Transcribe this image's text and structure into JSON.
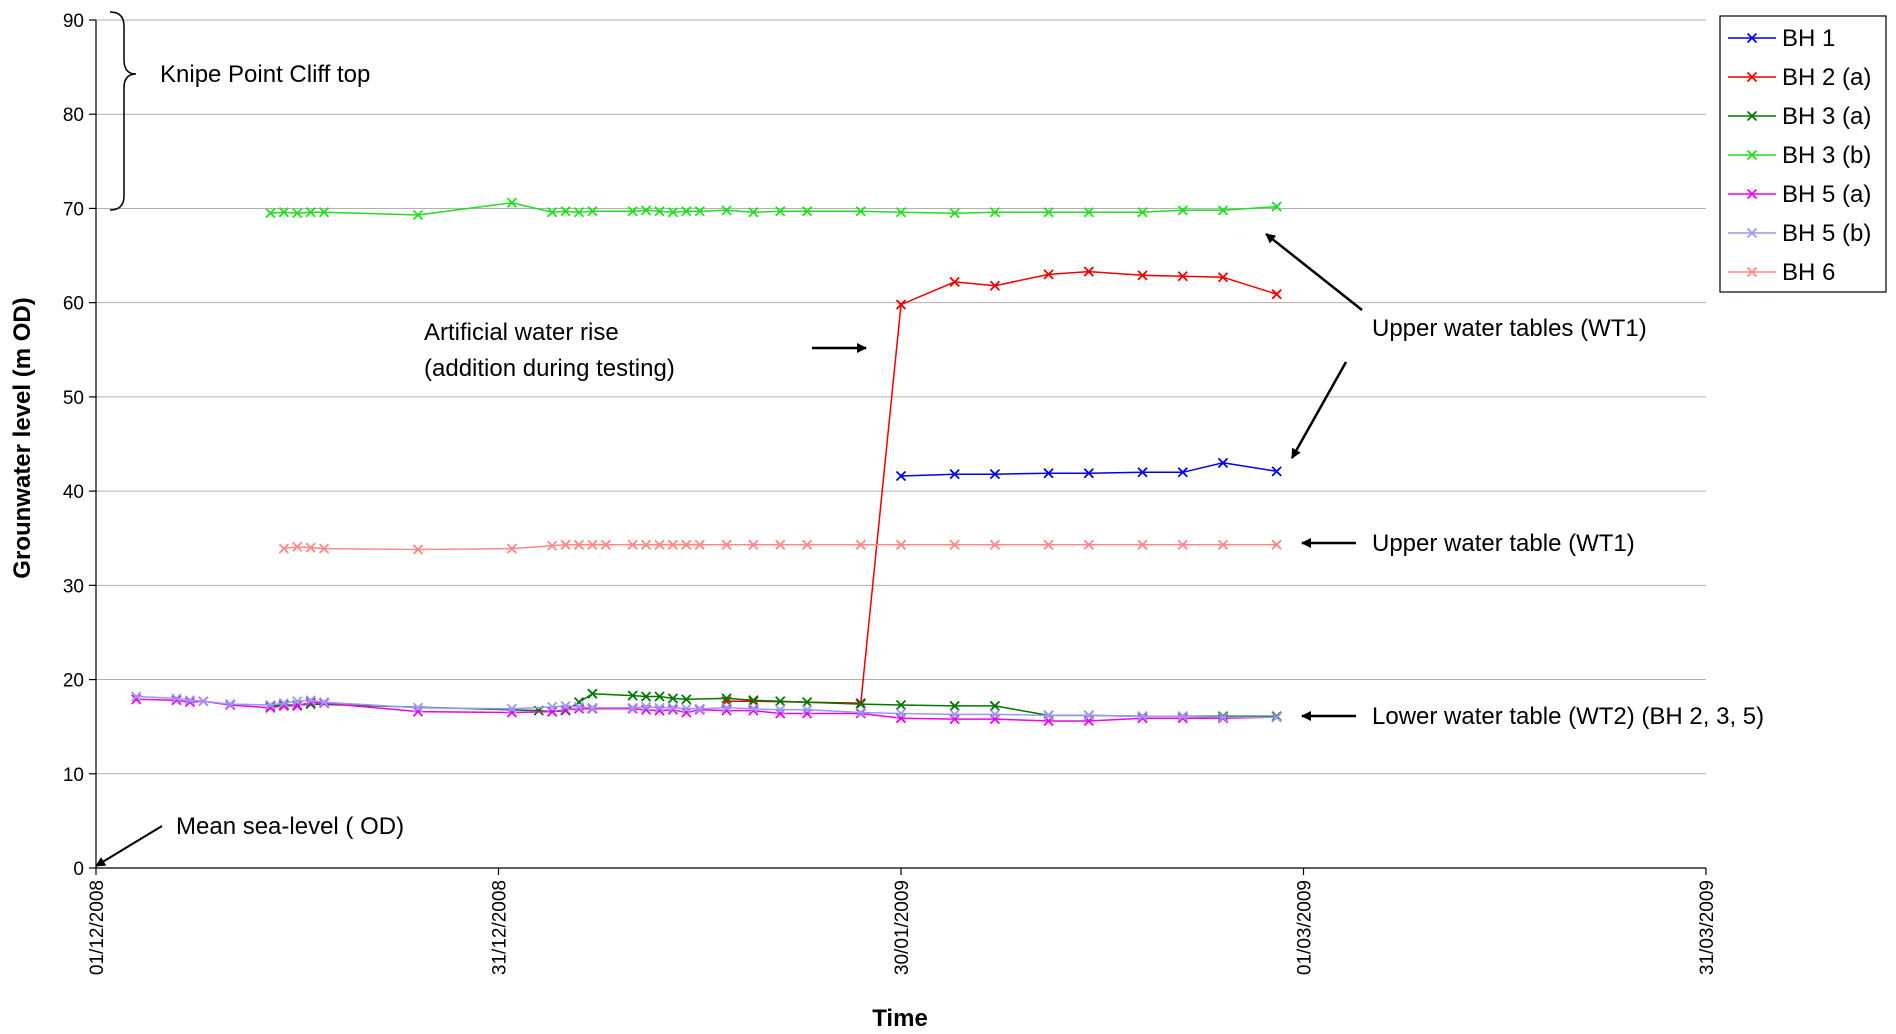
{
  "chart_data": {
    "type": "line",
    "title": "",
    "xlabel": "Time",
    "ylabel": "Grounwater level (m OD)",
    "ylim": [
      0,
      90
    ],
    "yticks": [
      0,
      10,
      20,
      30,
      40,
      50,
      60,
      70,
      80,
      90
    ],
    "xlim": [
      "2008-12-01",
      "2009-03-31"
    ],
    "xticks": [
      {
        "date": "2008-12-01",
        "label": "01/12/2008"
      },
      {
        "date": "2008-12-31",
        "label": "31/12/2008"
      },
      {
        "date": "2009-01-30",
        "label": "30/01/2009"
      },
      {
        "date": "2009-03-01",
        "label": "01/03/2009"
      },
      {
        "date": "2009-03-31",
        "label": "31/03/2009"
      }
    ],
    "grid": "horizontal",
    "legend_position": "top-right",
    "marker": "x",
    "series": [
      {
        "name": "BH 1",
        "color": "#0000ee",
        "x": [
          "2009-01-30",
          "2009-02-03",
          "2009-02-06",
          "2009-02-10",
          "2009-02-13",
          "2009-02-17",
          "2009-02-20",
          "2009-02-23",
          "2009-02-27"
        ],
        "y": [
          41.6,
          41.8,
          41.8,
          41.9,
          41.9,
          42.0,
          42.0,
          43.0,
          42.1
        ]
      },
      {
        "name": "BH 2 (a)",
        "color": "#ee0000",
        "x": [
          "2009-01-17",
          "2009-01-19",
          "2009-01-27",
          "2009-01-30",
          "2009-02-03",
          "2009-02-06",
          "2009-02-10",
          "2009-02-13",
          "2009-02-17",
          "2009-02-20",
          "2009-02-23",
          "2009-02-27"
        ],
        "y": [
          17.7,
          17.7,
          17.5,
          59.8,
          62.2,
          61.8,
          63.0,
          63.3,
          62.9,
          62.8,
          62.7,
          60.9
        ],
        "annotation": "Artificial water rise\n(addition during testing)"
      },
      {
        "name": "BH 3 (a)",
        "color": "#007700",
        "x": [
          "2008-12-14",
          "2008-12-15",
          "2008-12-16",
          "2008-12-17",
          "2009-01-03",
          "2009-01-04",
          "2009-01-05",
          "2009-01-06",
          "2009-01-07",
          "2009-01-10",
          "2009-01-11",
          "2009-01-12",
          "2009-01-13",
          "2009-01-14",
          "2009-01-17",
          "2009-01-19",
          "2009-01-21",
          "2009-01-23",
          "2009-01-27",
          "2009-01-30",
          "2009-02-03",
          "2009-02-06",
          "2009-02-10",
          "2009-02-13",
          "2009-02-17",
          "2009-02-20",
          "2009-02-23",
          "2009-02-27"
        ],
        "y": [
          17.2,
          17.3,
          17.3,
          17.4,
          16.7,
          16.6,
          16.7,
          17.6,
          18.5,
          18.3,
          18.2,
          18.2,
          18.0,
          17.9,
          18.0,
          17.8,
          17.7,
          17.6,
          17.4,
          17.3,
          17.2,
          17.2,
          16.2,
          16.2,
          16.1,
          16.1,
          16.1,
          16.1
        ]
      },
      {
        "name": "BH 3 (b)",
        "color": "#22dd22",
        "x": [
          "2008-12-14",
          "2008-12-15",
          "2008-12-16",
          "2008-12-17",
          "2008-12-18",
          "2008-12-25",
          "2009-01-01",
          "2009-01-04",
          "2009-01-05",
          "2009-01-06",
          "2009-01-07",
          "2009-01-10",
          "2009-01-11",
          "2009-01-12",
          "2009-01-13",
          "2009-01-14",
          "2009-01-15",
          "2009-01-17",
          "2009-01-19",
          "2009-01-21",
          "2009-01-23",
          "2009-01-27",
          "2009-01-30",
          "2009-02-03",
          "2009-02-06",
          "2009-02-10",
          "2009-02-13",
          "2009-02-17",
          "2009-02-20",
          "2009-02-23",
          "2009-02-27"
        ],
        "y": [
          69.5,
          69.6,
          69.5,
          69.6,
          69.6,
          69.3,
          70.6,
          69.6,
          69.7,
          69.6,
          69.7,
          69.7,
          69.8,
          69.7,
          69.6,
          69.7,
          69.7,
          69.8,
          69.6,
          69.7,
          69.7,
          69.7,
          69.6,
          69.5,
          69.6,
          69.6,
          69.6,
          69.6,
          69.8,
          69.8,
          70.2
        ],
        "annotation": "Upper water tables (WT1)"
      },
      {
        "name": "BH 5 (a)",
        "color": "#ee00ee",
        "x": [
          "2008-12-04",
          "2008-12-07",
          "2008-12-08",
          "2008-12-09",
          "2008-12-11",
          "2008-12-14",
          "2008-12-15",
          "2008-12-16",
          "2008-12-17",
          "2008-12-18",
          "2008-12-25",
          "2009-01-01",
          "2009-01-04",
          "2009-01-05",
          "2009-01-06",
          "2009-01-07",
          "2009-01-10",
          "2009-01-11",
          "2009-01-12",
          "2009-01-13",
          "2009-01-14",
          "2009-01-15",
          "2009-01-17",
          "2009-01-19",
          "2009-01-21",
          "2009-01-23",
          "2009-01-27",
          "2009-01-30",
          "2009-02-03",
          "2009-02-06",
          "2009-02-10",
          "2009-02-13",
          "2009-02-17",
          "2009-02-20",
          "2009-02-23",
          "2009-02-27"
        ],
        "y": [
          17.9,
          17.8,
          17.6,
          17.7,
          17.3,
          17.0,
          17.2,
          17.2,
          17.6,
          17.5,
          16.6,
          16.5,
          16.6,
          16.8,
          16.9,
          16.9,
          16.9,
          16.8,
          16.7,
          16.8,
          16.5,
          16.8,
          16.7,
          16.7,
          16.4,
          16.4,
          16.4,
          15.9,
          15.8,
          15.8,
          15.6,
          15.6,
          15.9,
          15.9,
          15.9,
          16.0
        ],
        "annotation": "Lower water table (WT2) (BH 2, 3, 5)"
      },
      {
        "name": "BH 5 (b)",
        "color": "#9999ee",
        "x": [
          "2008-12-04",
          "2008-12-07",
          "2008-12-08",
          "2008-12-09",
          "2008-12-11",
          "2008-12-14",
          "2008-12-15",
          "2008-12-16",
          "2008-12-17",
          "2008-12-18",
          "2008-12-25",
          "2009-01-01",
          "2009-01-04",
          "2009-01-05",
          "2009-01-06",
          "2009-01-07",
          "2009-01-10",
          "2009-01-11",
          "2009-01-12",
          "2009-01-13",
          "2009-01-14",
          "2009-01-15",
          "2009-01-17",
          "2009-01-19",
          "2009-01-21",
          "2009-01-23",
          "2009-01-27",
          "2009-01-30",
          "2009-02-03",
          "2009-02-06",
          "2009-02-10",
          "2009-02-13",
          "2009-02-17",
          "2009-02-20",
          "2009-02-23",
          "2009-02-27"
        ],
        "y": [
          18.2,
          18.0,
          17.8,
          17.7,
          17.4,
          17.3,
          17.5,
          17.7,
          17.8,
          17.6,
          17.0,
          16.9,
          17.1,
          17.2,
          17.1,
          17.0,
          17.0,
          17.1,
          17.0,
          17.0,
          16.9,
          16.9,
          17.0,
          16.9,
          16.8,
          16.8,
          16.5,
          16.4,
          16.3,
          16.3,
          16.2,
          16.2,
          16.1,
          16.1,
          16.0,
          16.0
        ]
      },
      {
        "name": "BH 6",
        "color": "#ff8888",
        "x": [
          "2008-12-15",
          "2008-12-16",
          "2008-12-17",
          "2008-12-18",
          "2008-12-25",
          "2009-01-01",
          "2009-01-04",
          "2009-01-05",
          "2009-01-06",
          "2009-01-07",
          "2009-01-08",
          "2009-01-10",
          "2009-01-11",
          "2009-01-12",
          "2009-01-13",
          "2009-01-14",
          "2009-01-15",
          "2009-01-17",
          "2009-01-19",
          "2009-01-21",
          "2009-01-23",
          "2009-01-27",
          "2009-01-30",
          "2009-02-03",
          "2009-02-06",
          "2009-02-10",
          "2009-02-13",
          "2009-02-17",
          "2009-02-20",
          "2009-02-23",
          "2009-02-27"
        ],
        "y": [
          33.9,
          34.1,
          34.0,
          33.9,
          33.8,
          33.9,
          34.2,
          34.3,
          34.3,
          34.3,
          34.3,
          34.3,
          34.3,
          34.3,
          34.3,
          34.3,
          34.3,
          34.3,
          34.3,
          34.3,
          34.3,
          34.3,
          34.3,
          34.3,
          34.3,
          34.3,
          34.3,
          34.3,
          34.3,
          34.3,
          34.3
        ],
        "annotation": "Upper water table (WT1)"
      }
    ],
    "annotations": {
      "cliff_top": "Knipe Point Cliff top",
      "sea_level": "Mean sea-level ( OD)",
      "artificial_rise": "Artificial water rise",
      "artificial_rise_2": "(addition during testing)",
      "upper_tables": "Upper water tables (WT1)",
      "upper_table": "Upper water table (WT1)",
      "lower_table": "Lower water table (WT2) (BH 2, 3, 5)"
    }
  }
}
